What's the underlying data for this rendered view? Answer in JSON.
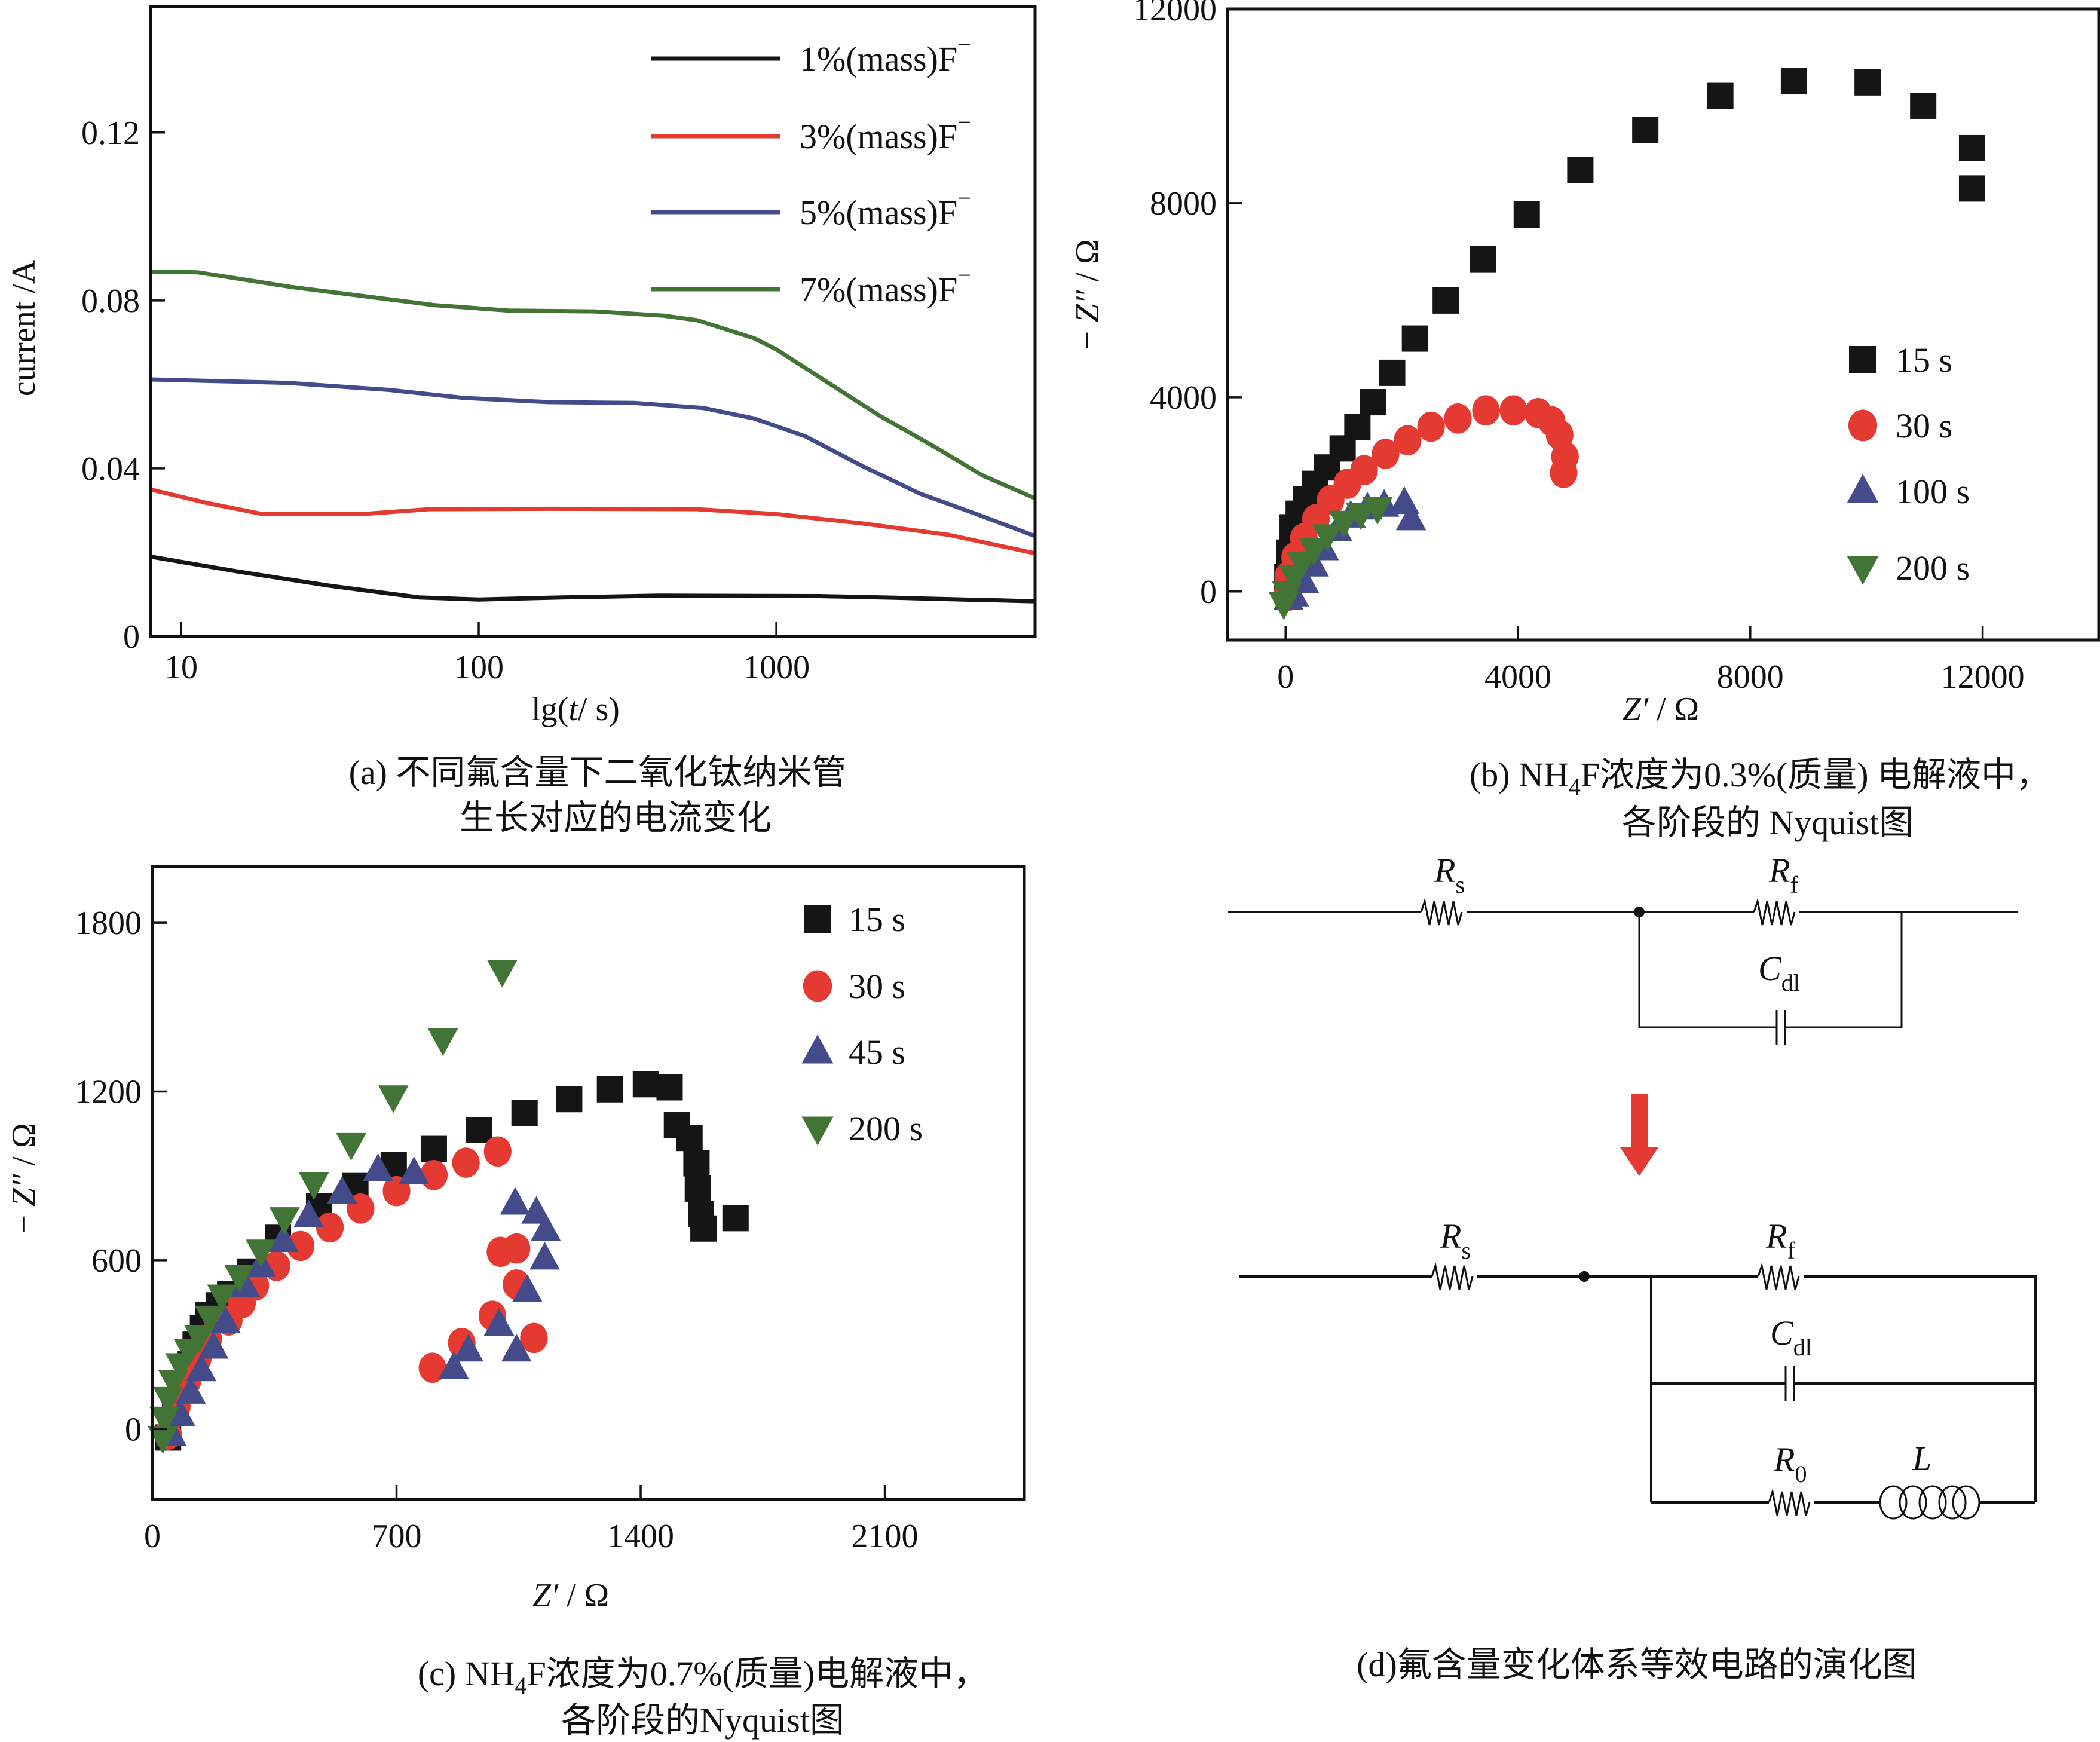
{
  "colors": {
    "black": "#151515",
    "red": "#e53a31",
    "blue": "#434b8b",
    "green": "#427535",
    "arrow": "#e53a31"
  },
  "chart_data": [
    {
      "id": "a",
      "type": "line",
      "title": "",
      "caption_lines": [
        "(a) 不同氟含量下二氧化钛纳米管",
        "生长对应的电流变化"
      ],
      "xlabel": "lg(t/ s)",
      "ylabel": "current /A",
      "xscale": "log",
      "xlim": [
        7.9,
        7400
      ],
      "ylim": [
        0,
        0.15
      ],
      "xticks": [
        {
          "value": 10,
          "label": "10"
        },
        {
          "value": 100,
          "label": "100"
        },
        {
          "value": 1000,
          "label": "1000"
        }
      ],
      "yticks": [
        {
          "value": 0,
          "label": "0"
        },
        {
          "value": 0.04,
          "label": "0.04"
        },
        {
          "value": 0.08,
          "label": "0.08"
        },
        {
          "value": 0.12,
          "label": "0.12"
        }
      ],
      "grid": false,
      "legend_position": "top-right",
      "series": [
        {
          "name": "1%(mass)F⁻",
          "label_main": "1%(mass)F",
          "label_sup": "−",
          "color_key": "black",
          "x": [
            7.9,
            15.7,
            31.4,
            63,
            100,
            191,
            402,
            1403,
            2560,
            7100,
            7400
          ],
          "y": [
            0.019,
            0.0154,
            0.0121,
            0.0093,
            0.0088,
            0.0093,
            0.0097,
            0.0096,
            0.0092,
            0.0084,
            0.0084
          ]
        },
        {
          "name": "3%(mass)F⁻",
          "label_main": "3%(mass)F",
          "label_sup": "−",
          "color_key": "red",
          "x": [
            7.9,
            12.2,
            18.9,
            40,
            68,
            172,
            542,
            1009,
            1955,
            3790,
            7400
          ],
          "y": [
            0.035,
            0.0318,
            0.0291,
            0.0291,
            0.0303,
            0.0304,
            0.0303,
            0.0291,
            0.0269,
            0.0242,
            0.0198
          ]
        },
        {
          "name": "5%(mass)F⁻",
          "label_main": "5%(mass)F",
          "label_sup": "−",
          "color_key": "blue",
          "x": [
            7.9,
            22.6,
            50,
            89,
            172,
            333,
            568,
            843,
            1256,
            1955,
            3040,
            4720,
            7400
          ],
          "y": [
            0.0612,
            0.0604,
            0.0587,
            0.0568,
            0.0558,
            0.0556,
            0.0544,
            0.0519,
            0.0476,
            0.0405,
            0.034,
            0.0291,
            0.0239
          ]
        },
        {
          "name": "7%(mass)F⁻",
          "label_main": "7%(mass)F",
          "label_sup": "−",
          "color_key": "green",
          "x": [
            7.9,
            11.4,
            23.6,
            71,
            126,
            245,
            417,
            542,
            843,
            1009,
            1435,
            2230,
            3470,
            4940,
            7400
          ],
          "y": [
            0.0869,
            0.0867,
            0.0832,
            0.0789,
            0.0776,
            0.0774,
            0.0764,
            0.0753,
            0.071,
            0.0682,
            0.0612,
            0.0525,
            0.0448,
            0.0383,
            0.0329
          ]
        }
      ]
    },
    {
      "id": "b",
      "type": "scatter",
      "title": "",
      "caption_lines": [
        "(b) NH₄F浓度为0.3%(质量) 电解液中，",
        "各阶段的 Nyquist图"
      ],
      "caption_parts": {
        "prefix": "(b) NH",
        "sub": "4",
        "suffix": "F浓度为0.3%(质量) 电解液中，",
        "line2": "各阶段的 Nyquist图"
      },
      "xlabel": "Z′ / Ω",
      "ylabel": "−Z″ / Ω",
      "xlim": [
        -1000,
        14000
      ],
      "ylim": [
        -1000,
        12000
      ],
      "xticks": [
        {
          "value": 0,
          "label": "0"
        },
        {
          "value": 4000,
          "label": "4000"
        },
        {
          "value": 8000,
          "label": "8000"
        },
        {
          "value": 12000,
          "label": "12000"
        }
      ],
      "yticks": [
        {
          "value": 0,
          "label": "0"
        },
        {
          "value": 4000,
          "label": "4000"
        },
        {
          "value": 8000,
          "label": "8000"
        },
        {
          "value": 12000,
          "label": "12000"
        }
      ],
      "grid": false,
      "legend_position": "right-middle",
      "series": [
        {
          "name": "15 s",
          "marker": "square",
          "color_key": "black",
          "x": [
            30,
            60,
            122,
            226,
            353,
            510,
            717,
            982,
            1236,
            1501,
            1835,
            2227,
            2757,
            3403,
            4152,
            5074,
            6193,
            7484,
            8752,
            10020,
            10977,
            11818,
            11818
          ],
          "y": [
            300,
            800,
            1322,
            1602,
            1905,
            2218,
            2555,
            2947,
            3395,
            3899,
            4504,
            5210,
            5994,
            6846,
            7765,
            8684,
            9502,
            10208,
            10510,
            10488,
            10006,
            9132,
            8302
          ]
        },
        {
          "name": "30 s",
          "marker": "circle",
          "color_key": "red",
          "x": [
            20,
            50,
            165,
            315,
            522,
            776,
            1064,
            1352,
            1721,
            2101,
            2505,
            2966,
            3450,
            3923,
            4349,
            4580,
            4718,
            4810,
            4787
          ],
          "y": [
            -100,
            314,
            706,
            1098,
            1490,
            1882,
            2218,
            2499,
            2835,
            3115,
            3395,
            3563,
            3731,
            3731,
            3675,
            3507,
            3227,
            2779,
            2443
          ]
        },
        {
          "name": "100 s",
          "marker": "triangle-up",
          "color_key": "blue",
          "x": [
            50,
            142,
            315,
            487,
            660,
            891,
            1121,
            1409,
            1698,
            2044,
            2159
          ],
          "y": [
            -150,
            -78,
            202,
            538,
            874,
            1266,
            1546,
            1714,
            1770,
            1826,
            1490
          ]
        },
        {
          "name": "200 s",
          "marker": "triangle-down",
          "color_key": "green",
          "x": [
            -31,
            27,
            142,
            280,
            487,
            718,
            1006,
            1294,
            1582
          ],
          "y": [
            -246,
            -22,
            314,
            594,
            874,
            1154,
            1434,
            1602,
            1714
          ]
        }
      ]
    },
    {
      "id": "c",
      "type": "scatter",
      "title": "",
      "caption_lines": [
        "(c) NH₄F浓度为0.7%(质量)电解液中，",
        "各阶段的Nyquist图"
      ],
      "caption_parts": {
        "prefix": "(c) NH",
        "sub": "4",
        "suffix": "F浓度为0.7%(质量)电解液中，",
        "line2": "各阶段的Nyquist图"
      },
      "xlabel": "Z′ / Ω",
      "ylabel": "−Z″ / Ω",
      "xlim": [
        0,
        2500
      ],
      "ylim": [
        -250,
        2000
      ],
      "xticks": [
        {
          "value": 0,
          "label": "0"
        },
        {
          "value": 700,
          "label": "700"
        },
        {
          "value": 1400,
          "label": "1400"
        },
        {
          "value": 2100,
          "label": "2100"
        }
      ],
      "yticks": [
        {
          "value": 0,
          "label": "0"
        },
        {
          "value": 600,
          "label": "600"
        },
        {
          "value": 1200,
          "label": "1200"
        },
        {
          "value": 1800,
          "label": "1800"
        }
      ],
      "grid": false,
      "legend_position": "top-right",
      "series": [
        {
          "name": "15 s",
          "marker": "square",
          "color_key": "black",
          "x": [
            45,
            65,
            90,
            110,
            124,
            145,
            160,
            190,
            223,
            280,
            360,
            478,
            582,
            692,
            807,
            937,
            1067,
            1195,
            1312,
            1415,
            1483,
            1504,
            1540,
            1560,
            1564,
            1573,
            1580,
            1672
          ],
          "y": [
            -30,
            60,
            150,
            230,
            300,
            360,
            405,
            440,
            480,
            560,
            680,
            792,
            864,
            939,
            996,
            1063,
            1124,
            1173,
            1208,
            1226,
            1215,
            1080,
            1035,
            945,
            855,
            765,
            713,
            750
          ]
        },
        {
          "name": "30 s",
          "marker": "circle",
          "color_key": "red",
          "x": [
            45,
            70,
            100,
            130,
            160,
            219,
            257,
            295,
            356,
            425,
            509,
            597,
            700,
            807,
            899,
            990,
            998,
            1044,
            1044,
            975,
            887,
            803,
            1094
          ],
          "y": [
            -20,
            80,
            170,
            250,
            320,
            386,
            448,
            510,
            580,
            651,
            717,
            784,
            846,
            903,
            947,
            987,
            630,
            642,
            514,
            403,
            306,
            218,
            324
          ]
        },
        {
          "name": "45 s",
          "marker": "triangle-up",
          "color_key": "blue",
          "x": [
            55,
            80,
            110,
            140,
            175,
            210,
            265,
            311,
            376,
            448,
            544,
            647,
            750,
            1040,
            1101,
            1128,
            1125,
            1075,
            994,
            1044,
            906,
            864
          ],
          "y": [
            -20,
            50,
            130,
            210,
            290,
            380,
            510,
            580,
            669,
            757,
            841,
            922,
            911,
            802,
            770,
            708,
            607,
            492,
            372,
            280,
            280,
            218
          ]
        },
        {
          "name": "200 s",
          "marker": "triangle-down",
          "color_key": "green",
          "x": [
            30,
            35,
            45,
            60,
            80,
            105,
            135,
            165,
            200,
            249,
            311,
            379,
            463,
            570,
            691,
            833,
            1003
          ],
          "y": [
            -30,
            40,
            110,
            170,
            230,
            280,
            329,
            399,
            474,
            545,
            634,
            749,
            873,
            1013,
            1182,
            1385,
            1628
          ]
        }
      ]
    }
  ],
  "diagram": {
    "caption": "(d)氟含量变化体系等效电路的演化图",
    "top_circuit": {
      "labels": [
        {
          "id": "Rs",
          "main": "R",
          "sub": "s"
        },
        {
          "id": "Rf",
          "main": "R",
          "sub": "f"
        },
        {
          "id": "Cdl",
          "main": "C",
          "sub": "dl"
        }
      ]
    },
    "bottom_circuit": {
      "labels": [
        {
          "id": "Rs",
          "main": "R",
          "sub": "s"
        },
        {
          "id": "Rf",
          "main": "R",
          "sub": "f"
        },
        {
          "id": "Cdl",
          "main": "C",
          "sub": "dl"
        },
        {
          "id": "R0",
          "main": "R",
          "sub": "0"
        },
        {
          "id": "L",
          "main": "L",
          "sub": ""
        }
      ]
    },
    "arrow_icon": "down-arrow-icon"
  }
}
